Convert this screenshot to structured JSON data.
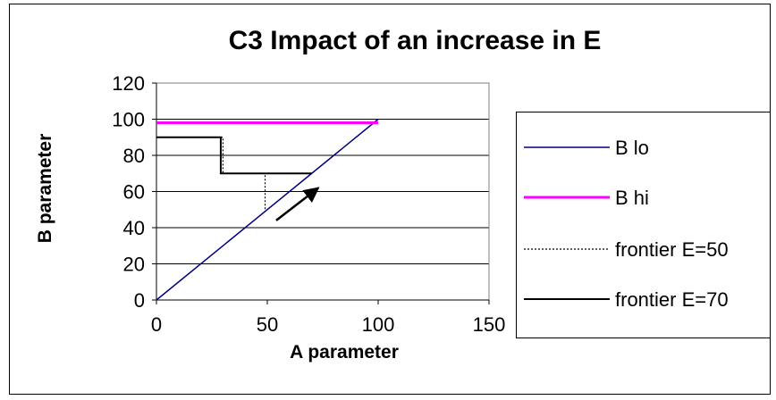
{
  "chart_data": {
    "type": "line",
    "title": "C3 Impact of an increase in E",
    "xlabel": "A parameter",
    "ylabel": "B parameter",
    "xlim": [
      0,
      150
    ],
    "ylim": [
      0,
      120
    ],
    "x_ticks": [
      0,
      50,
      100,
      150
    ],
    "y_ticks": [
      0,
      20,
      40,
      60,
      80,
      100,
      120
    ],
    "grid": "horizontal",
    "legend_position": "right",
    "series": [
      {
        "name": "B lo",
        "color": "#000080",
        "style": "solid",
        "x": [
          0,
          100
        ],
        "y": [
          0,
          100
        ]
      },
      {
        "name": "B hi",
        "color": "#ff00ff",
        "style": "solid-thick",
        "x": [
          0,
          100
        ],
        "y": [
          98,
          98
        ]
      },
      {
        "name": "frontier E=50",
        "color": "#000000",
        "style": "dotted",
        "x": [
          0,
          30,
          30,
          49,
          49
        ],
        "y": [
          90,
          90,
          70,
          70,
          50
        ]
      },
      {
        "name": "frontier E=70",
        "color": "#000000",
        "style": "solid",
        "x": [
          0,
          29,
          29,
          70,
          70
        ],
        "y": [
          90,
          90,
          70,
          70,
          70
        ]
      }
    ],
    "annotations": [
      {
        "type": "arrow",
        "from": [
          54,
          44
        ],
        "to": [
          73,
          62
        ]
      }
    ]
  }
}
